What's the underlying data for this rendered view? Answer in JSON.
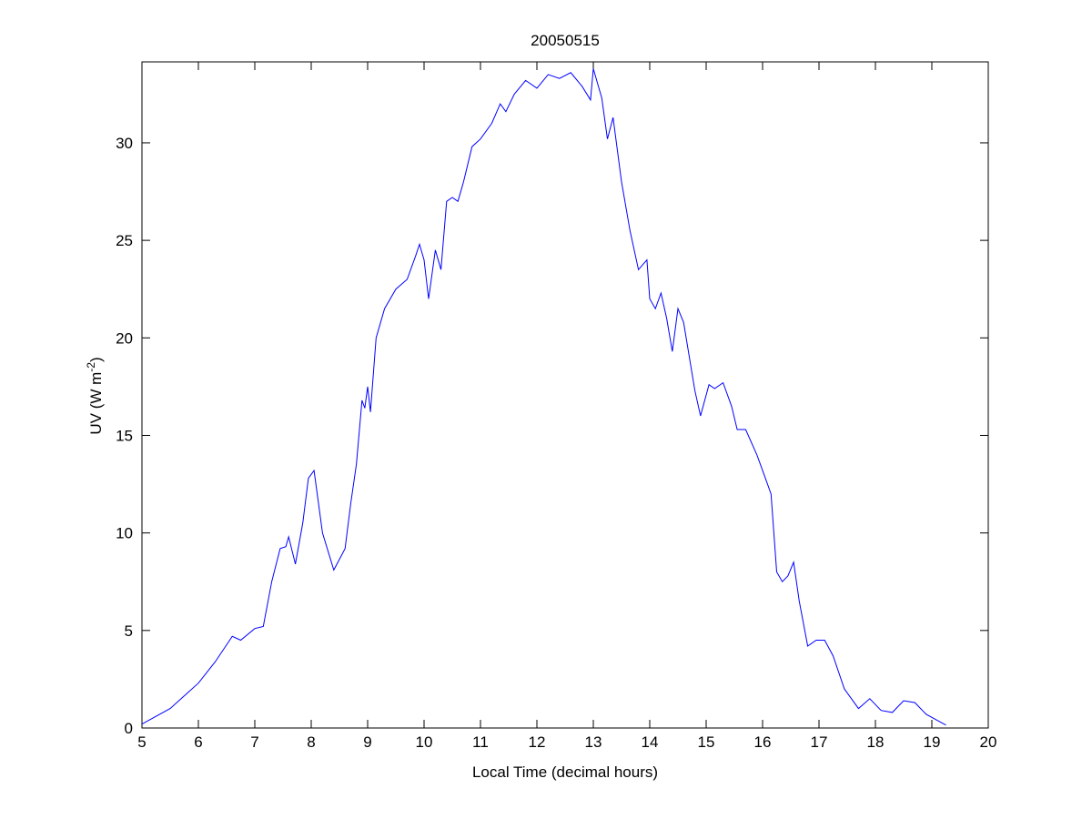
{
  "chart_data": {
    "type": "line",
    "title": "20050515",
    "xlabel": "Local Time (decimal hours)",
    "ylabel": {
      "base": "UV (W m",
      "superscript": "-2",
      "close": ")"
    },
    "xlim": [
      5,
      20
    ],
    "ylim": [
      0,
      34.15
    ],
    "xticks": [
      5,
      6,
      7,
      8,
      9,
      10,
      11,
      12,
      13,
      14,
      15,
      16,
      17,
      18,
      19,
      20
    ],
    "yticks": [
      0,
      5,
      10,
      15,
      20,
      25,
      30
    ],
    "grid": false,
    "line_color": "#0000ff",
    "series": [
      {
        "name": "UV",
        "x": [
          5.0,
          5.5,
          6.0,
          6.3,
          6.6,
          6.75,
          7.0,
          7.15,
          7.3,
          7.45,
          7.55,
          7.6,
          7.72,
          7.85,
          7.95,
          8.05,
          8.2,
          8.4,
          8.6,
          8.7,
          8.8,
          8.9,
          8.95,
          9.0,
          9.05,
          9.15,
          9.3,
          9.5,
          9.7,
          9.85,
          9.92,
          10.0,
          10.08,
          10.2,
          10.3,
          10.4,
          10.5,
          10.6,
          10.7,
          10.85,
          11.0,
          11.2,
          11.35,
          11.45,
          11.6,
          11.8,
          12.0,
          12.2,
          12.4,
          12.6,
          12.8,
          12.95,
          13.0,
          13.15,
          13.25,
          13.35,
          13.5,
          13.65,
          13.8,
          13.95,
          14.0,
          14.1,
          14.2,
          14.3,
          14.4,
          14.5,
          14.6,
          14.8,
          14.9,
          15.05,
          15.15,
          15.3,
          15.45,
          15.55,
          15.7,
          15.9,
          16.05,
          16.15,
          16.25,
          16.35,
          16.45,
          16.55,
          16.65,
          16.8,
          16.95,
          17.1,
          17.25,
          17.45,
          17.7,
          17.9,
          18.1,
          18.3,
          18.5,
          18.7,
          18.9,
          19.25
        ],
        "y": [
          0.2,
          1.0,
          2.3,
          3.4,
          4.7,
          4.5,
          5.1,
          5.2,
          7.5,
          9.2,
          9.3,
          9.8,
          8.4,
          10.5,
          12.8,
          13.2,
          10.0,
          8.1,
          9.2,
          11.5,
          13.5,
          16.8,
          16.4,
          17.5,
          16.2,
          20.0,
          21.5,
          22.5,
          23.0,
          24.2,
          24.8,
          24.0,
          22.0,
          24.5,
          23.5,
          27.0,
          27.2,
          27.0,
          28.0,
          29.8,
          30.2,
          31.0,
          32.0,
          31.6,
          32.5,
          33.2,
          32.8,
          33.5,
          33.3,
          33.6,
          32.9,
          32.2,
          33.8,
          32.3,
          30.2,
          31.3,
          28.0,
          25.5,
          23.5,
          24.0,
          22.0,
          21.5,
          22.3,
          21.0,
          19.3,
          21.5,
          20.8,
          17.3,
          16.0,
          17.6,
          17.4,
          17.7,
          16.5,
          15.3,
          15.3,
          14.0,
          12.8,
          12.0,
          8.0,
          7.5,
          7.8,
          8.5,
          6.5,
          4.2,
          4.5,
          4.5,
          3.7,
          2.0,
          1.0,
          1.5,
          0.9,
          0.8,
          1.4,
          1.3,
          0.7,
          0.15
        ]
      }
    ]
  }
}
